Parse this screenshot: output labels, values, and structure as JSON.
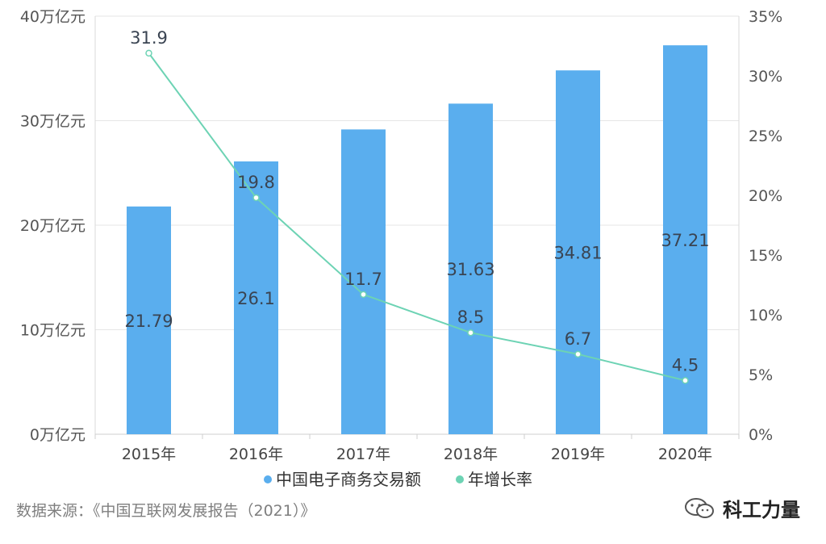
{
  "chart_data": {
    "type": "bar",
    "categories": [
      "2015年",
      "2016年",
      "2017年",
      "2018年",
      "2019年",
      "2020年"
    ],
    "series": [
      {
        "name": "中国电子商务交易额",
        "type": "bar",
        "axis": "left",
        "values": [
          21.79,
          26.1,
          29.16,
          31.63,
          34.81,
          37.21
        ],
        "labels": [
          "21.79",
          "26.1",
          "",
          "31.63",
          "34.81",
          "37.21"
        ],
        "color": "#5aaeee"
      },
      {
        "name": "年增长率",
        "type": "line",
        "axis": "right",
        "values": [
          31.9,
          19.8,
          11.7,
          8.5,
          6.7,
          4.5
        ],
        "labels": [
          "31.9",
          "19.8",
          "11.7",
          "8.5",
          "6.7",
          "4.5"
        ],
        "color": "#6dd3b4"
      }
    ],
    "y_left": {
      "ticks": [
        0,
        10,
        20,
        30,
        40
      ],
      "tick_labels": [
        "0万亿元",
        "10万亿元",
        "20万亿元",
        "30万亿元",
        "40万亿元"
      ],
      "range": [
        0,
        40
      ]
    },
    "y_right": {
      "ticks": [
        0,
        5,
        10,
        15,
        20,
        25,
        30,
        35
      ],
      "tick_labels": [
        "0%",
        "5%",
        "10%",
        "15%",
        "20%",
        "25%",
        "30%",
        "35%"
      ],
      "range": [
        0,
        35
      ]
    },
    "legend_position": "bottom"
  },
  "source": "数据来源：《中国互联网发展报告（2021）》",
  "brand": {
    "name": "科工力量",
    "icon": "wechat-icon"
  }
}
